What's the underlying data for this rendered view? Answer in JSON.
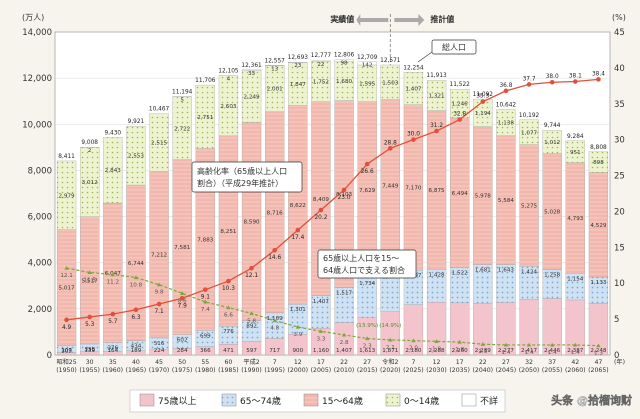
{
  "chart_data": {
    "type": "bar",
    "y_left_unit": "(万人)",
    "y_right_unit": "(%)",
    "x_unit": "(年)",
    "ylim_left": [
      0,
      14000
    ],
    "ylim_right": [
      0,
      45
    ],
    "left_ticks": [
      "0",
      "2,000",
      "4,000",
      "6,000",
      "8,000",
      "10,000",
      "12,000",
      "14,000"
    ],
    "right_ticks": [
      "0",
      "5",
      "10",
      "15",
      "20",
      "25",
      "30",
      "35",
      "40",
      "45"
    ],
    "categories_top": [
      "昭和25",
      "30",
      "35",
      "40",
      "45",
      "50",
      "55",
      "60",
      "平成2",
      "7",
      "12",
      "17",
      "22",
      "27",
      "令和2",
      "7",
      "12",
      "17",
      "22",
      "27",
      "32",
      "37",
      "42",
      "47"
    ],
    "categories_bottom": [
      "(1950)",
      "(1955)",
      "(1960)",
      "(1965)",
      "(1970)",
      "(1975)",
      "(1980)",
      "(1985)",
      "(1990)",
      "(1995)",
      "(2000)",
      "(2005)",
      "(2010)",
      "(2015)",
      "(2020)",
      "(2025)",
      "(2030)",
      "(2035)",
      "(2040)",
      "(2045)",
      "(2050)",
      "(2055)",
      "(2060)",
      "(2065)"
    ],
    "totals": [
      "8,411",
      "9,008",
      "9,430",
      "9,921",
      "10,467",
      "11,194",
      "11,706",
      "12,105",
      "12,361",
      "12,557",
      "12,693",
      "12,777",
      "12,806",
      "12,709",
      "12,571",
      "12,254",
      "11,913",
      "11,522",
      "11,092",
      "10,642",
      "10,192",
      "9,744",
      "9,284",
      "8,808"
    ],
    "total_values": [
      8411,
      9008,
      9430,
      9921,
      10467,
      11194,
      11706,
      12105,
      12361,
      12557,
      12693,
      12777,
      12806,
      12709,
      12571,
      12254,
      11913,
      11522,
      11092,
      10642,
      10192,
      9744,
      9284,
      8808
    ],
    "series": [
      {
        "name": "75歳以上",
        "values": [
          107,
          139,
          164,
          189,
          224,
          284,
          366,
          471,
          597,
          717,
          900,
          1160,
          1407,
          1613,
          1871,
          2180,
          2288,
          2260,
          2239,
          2277,
          2417,
          2446,
          2387,
          2248
        ],
        "labels": [
          "107",
          "139",
          "164",
          "189",
          "224",
          "284",
          "366",
          "471",
          "597",
          "717",
          "900",
          "1,160",
          "1,407",
          "1,613",
          "1,871",
          "2,180",
          "2,288",
          "2,260",
          "2,239",
          "2,277",
          "2,417",
          "2,446",
          "2,387",
          "2,248"
        ]
      },
      {
        "name": "65～74歳",
        "values": [
          309,
          338,
          376,
          434,
          516,
          602,
          699,
          776,
          892,
          1109,
          1301,
          1407,
          1517,
          1734,
          1747,
          1497,
          1428,
          1522,
          1681,
          1643,
          1424,
          1258,
          1154,
          1133
        ],
        "labels": [
          "309",
          "338",
          "376",
          "434",
          "516",
          "602",
          "699",
          "776",
          "892",
          "1,109",
          "1,301",
          "1,407",
          "1,517",
          "1,734",
          "1,747",
          "1,497",
          "1,428",
          "1,522",
          "1,681",
          "1,643",
          "1,424",
          "1,258",
          "1,154",
          "1,133"
        ]
      },
      {
        "name": "15～64歳",
        "values": [
          5017,
          5517,
          6047,
          6744,
          7212,
          7581,
          7883,
          8251,
          8590,
          8716,
          8622,
          8409,
          8103,
          7629,
          7449,
          7170,
          6875,
          6494,
          5978,
          5584,
          5275,
          5028,
          4793,
          4529
        ],
        "labels": [
          "5,017",
          "5,517",
          "6,047",
          "6,744",
          "7,212",
          "7,581",
          "7,883",
          "8,251",
          "8,590",
          "8,716",
          "8,622",
          "8,409",
          "8,103",
          "7,629",
          "7,449",
          "7,170",
          "6,875",
          "6,494",
          "5,978",
          "5,584",
          "5,275",
          "5,028",
          "4,793",
          "4,529"
        ]
      },
      {
        "name": "0～14歳",
        "values": [
          2979,
          3012,
          2843,
          2553,
          2515,
          2722,
          2751,
          2603,
          2249,
          2001,
          1847,
          1752,
          1680,
          1595,
          1503,
          1407,
          1321,
          1246,
          1194,
          1138,
          1077,
          1012,
          951,
          898
        ],
        "labels": [
          "2,979",
          "3,012",
          "2,843",
          "2,553",
          "2,515",
          "2,722",
          "2,751",
          "2,603",
          "2,249",
          "2,001",
          "1,847",
          "1,752",
          "1,680",
          "1,595",
          "1,503",
          "1,407",
          "1,321",
          "1,246",
          "1,194",
          "1,138",
          "1,077",
          "1,012",
          "951",
          "898"
        ]
      },
      {
        "name": "不詳",
        "values": [
          0,
          2,
          0,
          0,
          0,
          5,
          0,
          4,
          33,
          13,
          23,
          22,
          98,
          142,
          0,
          0,
          0,
          0,
          0,
          0,
          0,
          0,
          0,
          0
        ],
        "labels": [
          "",
          "2",
          "",
          "",
          "",
          "5",
          "",
          "4",
          "33",
          "13",
          "23",
          "22",
          "98",
          "142",
          "",
          "",
          "",
          "",
          "",
          "",
          "",
          "",
          "",
          ""
        ]
      }
    ],
    "aging_rate": {
      "name": "高齢化率",
      "values": [
        4.9,
        5.3,
        5.7,
        6.3,
        7.1,
        7.9,
        9.1,
        10.3,
        12.1,
        14.6,
        17.4,
        20.2,
        23.0,
        26.6,
        28.8,
        30.0,
        31.2,
        32.8,
        35.3,
        36.8,
        37.7,
        38.0,
        38.1,
        38.4
      ],
      "labels": [
        "4.9",
        "5.3",
        "5.7",
        "6.3",
        "7.1",
        "7.9",
        "9.1",
        "10.3",
        "12.1",
        "14.6",
        "17.4",
        "20.2",
        "23.0",
        "26.6",
        "28.8",
        "30.0",
        "31.2",
        "32.8",
        "35.3",
        "36.8",
        "37.7",
        "38.0",
        "38.1",
        "38.4"
      ]
    },
    "support_ratio": {
      "values": [
        12.1,
        11.5,
        11.2,
        10.8,
        9.8,
        8.6,
        7.4,
        6.6,
        5.8,
        4.8,
        3.9,
        3.3,
        2.8,
        2.3,
        2.1,
        2.0,
        1.9,
        1.8,
        1.5,
        1.4,
        1.4,
        1.4,
        1.4,
        1.3
      ],
      "labels": [
        "12.1",
        "11.5",
        "11.2",
        "10.8",
        "9.8",
        "8.6",
        "7.4",
        "6.6",
        "5.8",
        "4.8",
        "3.9",
        "3.3",
        "2.8",
        "2.3",
        "2.1",
        "2.0",
        "1.9",
        "1.8",
        "1.5",
        "1.4",
        "1.4",
        "1.4",
        "1.4",
        "1.3"
      ]
    },
    "old_pct_labels": [
      "",
      "",
      "",
      "",
      "",
      "",
      "",
      "",
      "",
      "",
      "",
      "",
      "",
      "(13.9%)",
      "(14.9%)",
      "",
      "",
      "",
      "",
      "",
      "",
      "",
      "",
      ""
    ],
    "period_labels": {
      "actual": "実績値",
      "projected": "推計値"
    },
    "annotations": {
      "total_box": "総人口",
      "aging_box_line1": "高齢化率（65歳以上人口",
      "aging_box_line2": "割合）（平成29年推計）",
      "support_box_line1": "65歳以上人口を15～",
      "support_box_line2": "64歳人口で支える割合"
    },
    "legend": [
      {
        "label": "75歳以上",
        "color": "#f4c4cc"
      },
      {
        "label": "65～74歳",
        "color": "#cfe2f3"
      },
      {
        "label": "15～64歳",
        "color": "#f0b4aa"
      },
      {
        "label": "0～14歳",
        "color": "#e9f0c4"
      },
      {
        "label": "不詳",
        "color": "#ffffff"
      }
    ],
    "watermark": "头条 @拾榴询财"
  }
}
